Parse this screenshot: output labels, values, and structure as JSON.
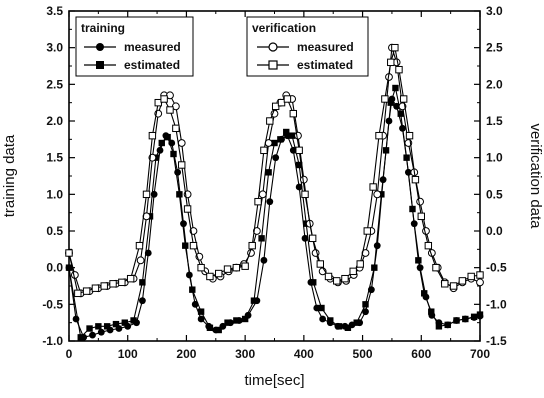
{
  "chart_data": {
    "type": "line",
    "xlabel": "time[sec]",
    "ylabel_left": "training data",
    "ylabel_right": "verification data",
    "xlim": [
      0,
      700
    ],
    "ylim_left": [
      -1.0,
      3.5
    ],
    "ylim_right": [
      -1.5,
      3.0
    ],
    "grid": false,
    "x_ticks": [
      "0",
      "100",
      "200",
      "300",
      "400",
      "500",
      "600",
      "700"
    ],
    "y_ticks_left": [
      "-1.0",
      "-0.5",
      "0.0",
      "0.5",
      "1.0",
      "1.5",
      "2.0",
      "2.5",
      "3.0",
      "3.5"
    ],
    "y_ticks_right": [
      "-1.5",
      "-1.0",
      "-0.5",
      "0.0",
      "0.5",
      "1.0",
      "1.5",
      "2.0",
      "2.5",
      "3.0"
    ],
    "legends": [
      {
        "title": "training",
        "placement": "top-left",
        "entries": [
          {
            "label": "measured",
            "marker": "filled-circle"
          },
          {
            "label": "estimated",
            "marker": "filled-square"
          }
        ]
      },
      {
        "title": "verification",
        "placement": "top-center",
        "entries": [
          {
            "label": "measured",
            "marker": "open-circle"
          },
          {
            "label": "estimated",
            "marker": "open-square"
          }
        ]
      }
    ],
    "series": [
      {
        "name": "measured",
        "group": "training",
        "axis": "left",
        "marker": "filled-circle",
        "points": [
          [
            0,
            0.0
          ],
          [
            12,
            -0.7
          ],
          [
            25,
            -0.95
          ],
          [
            40,
            -0.92
          ],
          [
            55,
            -0.88
          ],
          [
            70,
            -0.85
          ],
          [
            85,
            -0.83
          ],
          [
            100,
            -0.8
          ],
          [
            115,
            -0.75
          ],
          [
            125,
            -0.45
          ],
          [
            135,
            0.2
          ],
          [
            145,
            1.0
          ],
          [
            155,
            1.6
          ],
          [
            165,
            1.8
          ],
          [
            175,
            1.7
          ],
          [
            185,
            1.3
          ],
          [
            195,
            0.6
          ],
          [
            205,
            -0.1
          ],
          [
            215,
            -0.5
          ],
          [
            225,
            -0.7
          ],
          [
            238,
            -0.8
          ],
          [
            250,
            -0.85
          ],
          [
            262,
            -0.8
          ],
          [
            275,
            -0.75
          ],
          [
            290,
            -0.72
          ],
          [
            305,
            -0.65
          ],
          [
            320,
            -0.45
          ],
          [
            332,
            0.1
          ],
          [
            342,
            0.9
          ],
          [
            352,
            1.5
          ],
          [
            362,
            1.75
          ],
          [
            372,
            1.8
          ],
          [
            382,
            1.6
          ],
          [
            392,
            1.1
          ],
          [
            402,
            0.4
          ],
          [
            412,
            -0.2
          ],
          [
            422,
            -0.55
          ],
          [
            432,
            -0.7
          ],
          [
            445,
            -0.75
          ],
          [
            458,
            -0.8
          ],
          [
            470,
            -0.8
          ],
          [
            482,
            -0.78
          ],
          [
            495,
            -0.75
          ],
          [
            505,
            -0.6
          ],
          [
            515,
            -0.3
          ],
          [
            525,
            0.3
          ],
          [
            535,
            1.2
          ],
          [
            545,
            2.0
          ],
          [
            550,
            2.3
          ],
          [
            558,
            2.2
          ],
          [
            568,
            1.9
          ],
          [
            578,
            1.3
          ],
          [
            588,
            0.6
          ],
          [
            598,
            0.0
          ],
          [
            608,
            -0.4
          ],
          [
            618,
            -0.65
          ],
          [
            630,
            -0.75
          ],
          [
            645,
            -0.78
          ],
          [
            660,
            -0.72
          ],
          [
            675,
            -0.7
          ],
          [
            690,
            -0.68
          ],
          [
            700,
            -0.66
          ]
        ]
      },
      {
        "name": "estimated",
        "group": "training",
        "axis": "left",
        "marker": "filled-square",
        "points": [
          [
            0,
            0.0
          ],
          [
            20,
            -0.95
          ],
          [
            35,
            -0.83
          ],
          [
            50,
            -0.8
          ],
          [
            65,
            -0.8
          ],
          [
            80,
            -0.77
          ],
          [
            95,
            -0.75
          ],
          [
            110,
            -0.72
          ],
          [
            125,
            -0.2
          ],
          [
            138,
            0.7
          ],
          [
            148,
            1.5
          ],
          [
            158,
            1.7
          ],
          [
            168,
            1.78
          ],
          [
            178,
            1.55
          ],
          [
            188,
            1.0
          ],
          [
            198,
            0.3
          ],
          [
            210,
            -0.3
          ],
          [
            225,
            -0.6
          ],
          [
            240,
            -0.82
          ],
          [
            255,
            -0.85
          ],
          [
            270,
            -0.75
          ],
          [
            285,
            -0.72
          ],
          [
            300,
            -0.7
          ],
          [
            315,
            -0.45
          ],
          [
            328,
            0.4
          ],
          [
            340,
            1.3
          ],
          [
            350,
            1.7
          ],
          [
            360,
            1.75
          ],
          [
            370,
            1.85
          ],
          [
            380,
            1.8
          ],
          [
            392,
            1.4
          ],
          [
            404,
            0.6
          ],
          [
            416,
            -0.2
          ],
          [
            430,
            -0.55
          ],
          [
            445,
            -0.72
          ],
          [
            460,
            -0.8
          ],
          [
            475,
            -0.82
          ],
          [
            490,
            -0.75
          ],
          [
            505,
            -0.5
          ],
          [
            520,
            0.0
          ],
          [
            532,
            1.0
          ],
          [
            540,
            1.6
          ],
          [
            548,
            2.25
          ],
          [
            556,
            2.45
          ],
          [
            565,
            2.1
          ],
          [
            575,
            1.5
          ],
          [
            585,
            0.8
          ],
          [
            595,
            0.1
          ],
          [
            605,
            -0.35
          ],
          [
            617,
            -0.6
          ],
          [
            630,
            -0.8
          ],
          [
            645,
            -0.78
          ],
          [
            660,
            -0.72
          ],
          [
            675,
            -0.7
          ],
          [
            690,
            -0.67
          ],
          [
            700,
            -0.64
          ]
        ]
      },
      {
        "name": "measured",
        "group": "verification",
        "axis": "right",
        "marker": "open-circle",
        "points": [
          [
            0,
            -0.3
          ],
          [
            10,
            -0.6
          ],
          [
            20,
            -0.85
          ],
          [
            35,
            -0.82
          ],
          [
            50,
            -0.78
          ],
          [
            65,
            -0.75
          ],
          [
            80,
            -0.72
          ],
          [
            95,
            -0.7
          ],
          [
            110,
            -0.65
          ],
          [
            122,
            -0.4
          ],
          [
            132,
            0.2
          ],
          [
            142,
            1.0
          ],
          [
            152,
            1.6
          ],
          [
            162,
            1.85
          ],
          [
            172,
            1.85
          ],
          [
            182,
            1.7
          ],
          [
            192,
            1.2
          ],
          [
            202,
            0.5
          ],
          [
            212,
            0.0
          ],
          [
            222,
            -0.35
          ],
          [
            232,
            -0.55
          ],
          [
            245,
            -0.65
          ],
          [
            258,
            -0.62
          ],
          [
            272,
            -0.55
          ],
          [
            285,
            -0.5
          ],
          [
            298,
            -0.45
          ],
          [
            310,
            -0.3
          ],
          [
            320,
            0.0
          ],
          [
            330,
            0.5
          ],
          [
            340,
            1.2
          ],
          [
            350,
            1.6
          ],
          [
            360,
            1.75
          ],
          [
            370,
            1.85
          ],
          [
            380,
            1.8
          ],
          [
            390,
            1.3
          ],
          [
            400,
            0.7
          ],
          [
            410,
            0.1
          ],
          [
            420,
            -0.3
          ],
          [
            432,
            -0.55
          ],
          [
            445,
            -0.65
          ],
          [
            458,
            -0.7
          ],
          [
            472,
            -0.68
          ],
          [
            485,
            -0.6
          ],
          [
            495,
            -0.5
          ],
          [
            505,
            -0.3
          ],
          [
            515,
            0.0
          ],
          [
            525,
            0.5
          ],
          [
            535,
            1.3
          ],
          [
            545,
            2.1
          ],
          [
            550,
            2.5
          ],
          [
            558,
            2.3
          ],
          [
            568,
            1.7
          ],
          [
            578,
            1.2
          ],
          [
            588,
            0.8
          ],
          [
            598,
            0.4
          ],
          [
            608,
            0.0
          ],
          [
            618,
            -0.3
          ],
          [
            628,
            -0.5
          ],
          [
            640,
            -0.7
          ],
          [
            655,
            -0.78
          ],
          [
            670,
            -0.7
          ],
          [
            685,
            -0.65
          ],
          [
            700,
            -0.7
          ]
        ]
      },
      {
        "name": "estimated",
        "group": "verification",
        "axis": "right",
        "marker": "open-square",
        "points": [
          [
            0,
            -0.3
          ],
          [
            15,
            -0.85
          ],
          [
            30,
            -0.82
          ],
          [
            45,
            -0.78
          ],
          [
            60,
            -0.75
          ],
          [
            75,
            -0.72
          ],
          [
            90,
            -0.7
          ],
          [
            105,
            -0.65
          ],
          [
            120,
            -0.2
          ],
          [
            132,
            0.5
          ],
          [
            142,
            1.3
          ],
          [
            152,
            1.75
          ],
          [
            162,
            1.8
          ],
          [
            172,
            1.65
          ],
          [
            182,
            1.4
          ],
          [
            192,
            0.9
          ],
          [
            202,
            0.3
          ],
          [
            212,
            -0.2
          ],
          [
            225,
            -0.5
          ],
          [
            240,
            -0.62
          ],
          [
            255,
            -0.58
          ],
          [
            270,
            -0.52
          ],
          [
            285,
            -0.5
          ],
          [
            300,
            -0.48
          ],
          [
            312,
            -0.2
          ],
          [
            322,
            0.4
          ],
          [
            332,
            1.1
          ],
          [
            342,
            1.5
          ],
          [
            352,
            1.7
          ],
          [
            362,
            1.75
          ],
          [
            372,
            1.8
          ],
          [
            382,
            1.6
          ],
          [
            392,
            1.1
          ],
          [
            402,
            0.5
          ],
          [
            415,
            -0.1
          ],
          [
            428,
            -0.45
          ],
          [
            442,
            -0.62
          ],
          [
            456,
            -0.68
          ],
          [
            470,
            -0.65
          ],
          [
            484,
            -0.55
          ],
          [
            496,
            -0.45
          ],
          [
            508,
            0.0
          ],
          [
            518,
            0.6
          ],
          [
            528,
            1.3
          ],
          [
            538,
            1.8
          ],
          [
            548,
            2.3
          ],
          [
            555,
            2.5
          ],
          [
            562,
            2.2
          ],
          [
            570,
            1.8
          ],
          [
            580,
            1.3
          ],
          [
            590,
            0.7
          ],
          [
            600,
            0.2
          ],
          [
            612,
            -0.2
          ],
          [
            625,
            -0.5
          ],
          [
            640,
            -0.72
          ],
          [
            655,
            -0.75
          ],
          [
            670,
            -0.68
          ],
          [
            685,
            -0.62
          ],
          [
            700,
            -0.6
          ]
        ]
      }
    ]
  }
}
